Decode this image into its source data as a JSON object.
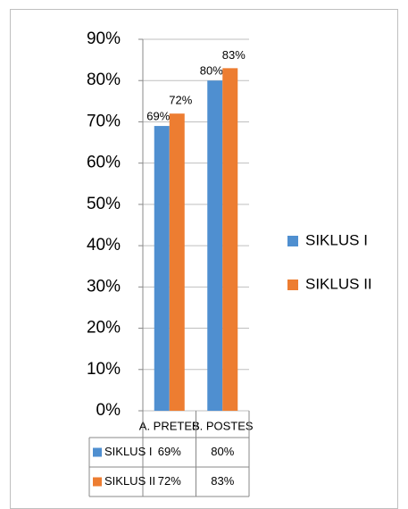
{
  "chart_data": {
    "type": "bar",
    "categories": [
      "A. PRETES",
      "B. POSTES"
    ],
    "series": [
      {
        "name": "SIKLUS I",
        "color": "#4f8fd0",
        "values": [
          69,
          80
        ],
        "value_labels": [
          "69%",
          "80%"
        ]
      },
      {
        "name": "SIKLUS II",
        "color": "#ed7d31",
        "values": [
          72,
          83
        ],
        "value_labels": [
          "72%",
          "83%"
        ]
      }
    ],
    "ylim": [
      0,
      90
    ],
    "yticks": [
      {
        "value": 0,
        "label": "0%"
      },
      {
        "value": 10,
        "label": "10%"
      },
      {
        "value": 20,
        "label": "20%"
      },
      {
        "value": 30,
        "label": "30%"
      },
      {
        "value": 40,
        "label": "40%"
      },
      {
        "value": 50,
        "label": "50%"
      },
      {
        "value": 60,
        "label": "60%"
      },
      {
        "value": 70,
        "label": "70%"
      },
      {
        "value": 80,
        "label": "80%"
      },
      {
        "value": 90,
        "label": "90%"
      }
    ],
    "grid": true,
    "legend": "right",
    "data_table": true
  }
}
